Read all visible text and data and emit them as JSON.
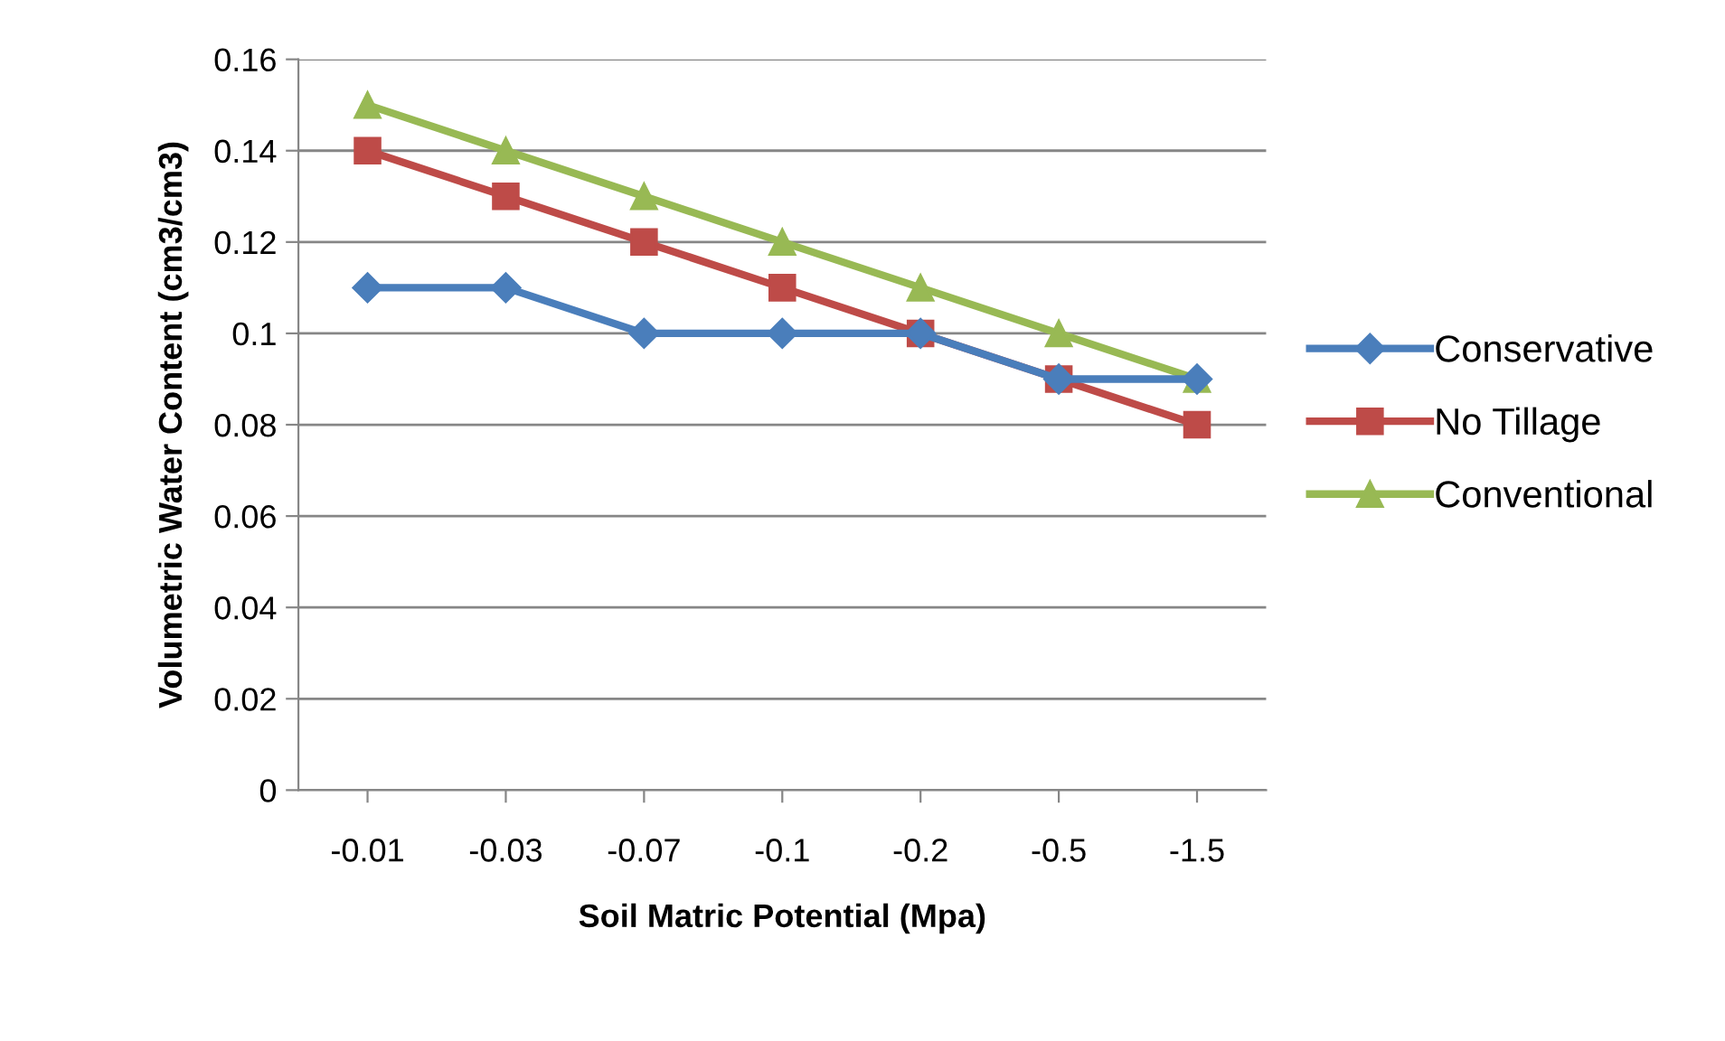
{
  "chart_data": {
    "type": "line",
    "xlabel": "Soil Matric Potential (Mpa)",
    "ylabel": "Volumetric Water Content (cm3/cm3)",
    "categories": [
      "-0.01",
      "-0.03",
      "-0.07",
      "-0.1",
      "-0.2",
      "-0.5",
      "-1.5"
    ],
    "series": [
      {
        "name": "Conservative",
        "color": "#4a7ebb",
        "marker": "diamond",
        "values": [
          0.11,
          0.11,
          0.1,
          0.1,
          0.1,
          0.09,
          0.09
        ]
      },
      {
        "name": "No Tillage",
        "color": "#be4b48",
        "marker": "square",
        "values": [
          0.14,
          0.13,
          0.12,
          0.11,
          0.1,
          0.09,
          0.08
        ]
      },
      {
        "name": "Conventional",
        "color": "#98b954",
        "marker": "triangle",
        "values": [
          0.15,
          0.14,
          0.13,
          0.12,
          0.11,
          0.1,
          0.09
        ]
      }
    ],
    "ylim": [
      0,
      0.16
    ],
    "yticks": [
      {
        "value": 0,
        "label": "0"
      },
      0.02,
      0.04,
      0.06,
      0.08,
      {
        "value": 0.1,
        "label": "0.1"
      },
      0.12,
      0.14,
      0.16
    ],
    "grid": "y",
    "legend": "right",
    "line_style": "solid"
  }
}
